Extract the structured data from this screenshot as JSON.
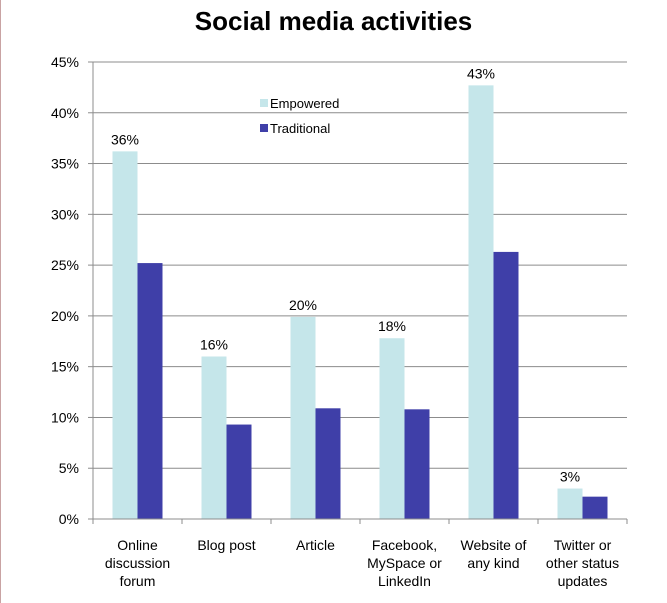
{
  "chart_data": {
    "type": "bar",
    "title": "Social media activities",
    "categories": [
      [
        "Online",
        "discussion",
        "forum"
      ],
      [
        "Blog post"
      ],
      [
        "Article"
      ],
      [
        "Facebook,",
        "MySpace or",
        "LinkedIn"
      ],
      [
        "Website of",
        "any kind"
      ],
      [
        "Twitter or",
        "other status",
        "updates"
      ]
    ],
    "series": [
      {
        "name": "Empowered",
        "color": "#c5e6ea",
        "values": [
          36.2,
          16.0,
          19.9,
          17.8,
          42.7,
          3.0
        ],
        "data_labels": [
          "36%",
          "16%",
          "20%",
          "18%",
          "43%",
          "3%"
        ]
      },
      {
        "name": "Traditional",
        "color": "#3f3fa8",
        "values": [
          25.2,
          9.3,
          10.9,
          10.8,
          26.3,
          2.2
        ]
      }
    ],
    "ylim": [
      0,
      45
    ],
    "yticks": [
      "0%",
      "5%",
      "10%",
      "15%",
      "20%",
      "25%",
      "30%",
      "35%",
      "40%",
      "45%"
    ],
    "ytick_values": [
      0,
      5,
      10,
      15,
      20,
      25,
      30,
      35,
      40,
      45
    ],
    "grid": true,
    "legend_position": "top-center",
    "xlabel": "",
    "ylabel": ""
  }
}
